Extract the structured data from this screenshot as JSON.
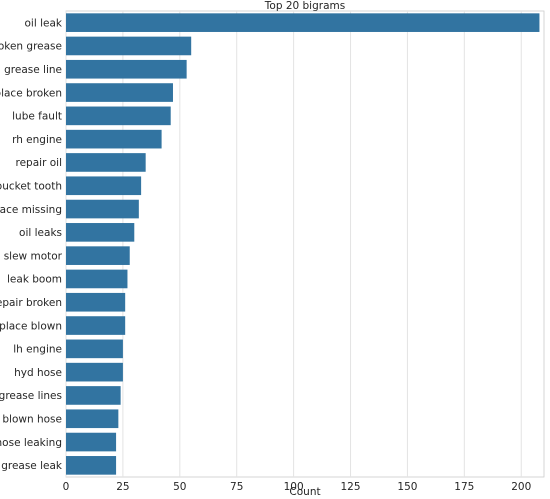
{
  "chart_data": {
    "type": "bar",
    "orientation": "horizontal",
    "title": "Top 20 bigrams",
    "xlabel": "Count",
    "ylabel": "",
    "xlim": [
      0,
      210
    ],
    "xticks": [
      0,
      25,
      50,
      75,
      100,
      125,
      150,
      175,
      200
    ],
    "grid": true,
    "bar_color": "#3274a1",
    "categories": [
      "oil leak",
      "broken grease",
      "grease line",
      "replace broken",
      "lube fault",
      "rh engine",
      "repair oil",
      "bucket tooth",
      "replace missing",
      "oil leaks",
      "slew motor",
      "leak boom",
      "repair broken",
      "replace blown",
      "lh engine",
      "hyd hose",
      "grease lines",
      "blown hose",
      "hose leaking",
      "grease leak"
    ],
    "values": [
      208,
      55,
      53,
      47,
      46,
      42,
      35,
      33,
      32,
      30,
      28,
      27,
      26,
      26,
      25,
      25,
      24,
      23,
      22,
      22
    ]
  }
}
